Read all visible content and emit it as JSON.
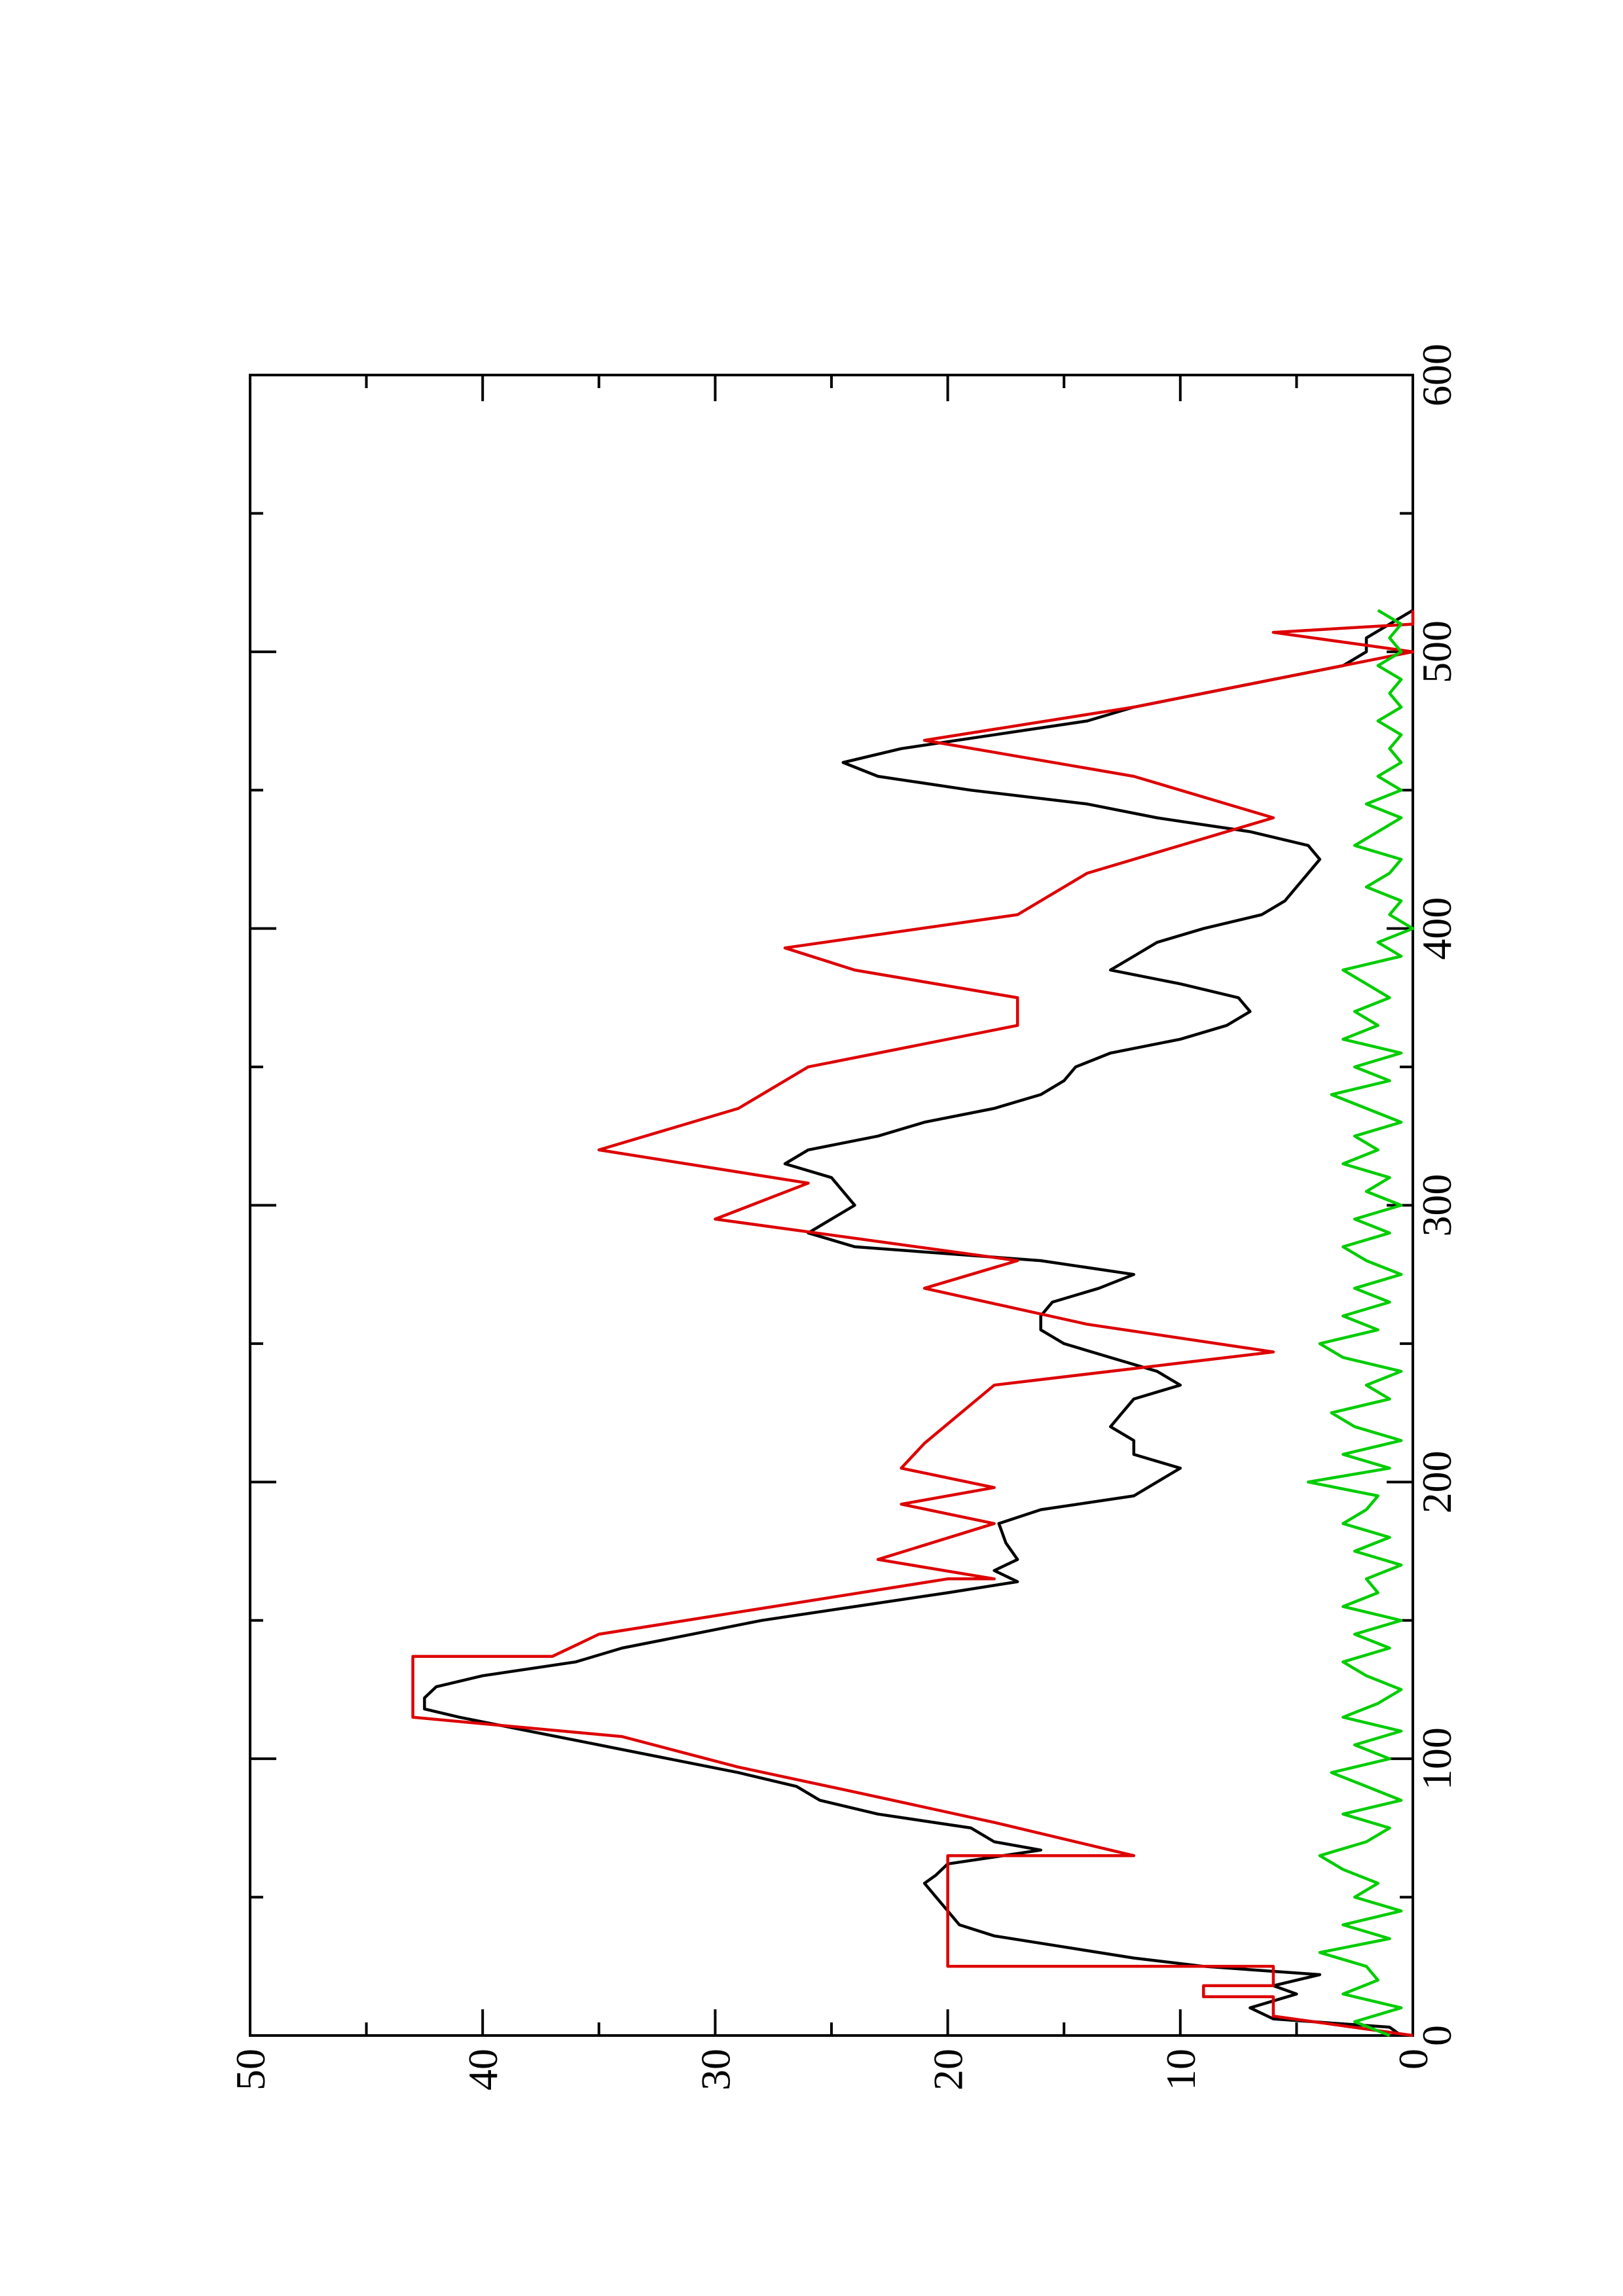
{
  "chart_data": {
    "type": "line",
    "title": "",
    "xlabel": "",
    "ylabel": "",
    "xlim": [
      0,
      600
    ],
    "ylim": [
      0,
      50
    ],
    "x_ticks": [
      0,
      100,
      200,
      300,
      400,
      500,
      600
    ],
    "y_ticks": [
      0,
      10,
      20,
      30,
      40,
      50
    ],
    "x_tick_labels": [
      "0",
      "100",
      "200",
      "300",
      "400",
      "500",
      "600"
    ],
    "y_tick_labels": [
      "0",
      "10",
      "20",
      "30",
      "40",
      "50"
    ],
    "grid": false,
    "legend": "none",
    "orientation": "rotated 90 degrees counter-clockwise",
    "series": [
      {
        "color": "#000000",
        "x": [
          0,
          3,
          6,
          10,
          15,
          18,
          22,
          25,
          28,
          32,
          36,
          40,
          45,
          50,
          55,
          58,
          62,
          67,
          70,
          75,
          80,
          85,
          90,
          95,
          100,
          105,
          110,
          115,
          118,
          122,
          126,
          130,
          135,
          140,
          145,
          150,
          155,
          160,
          164,
          168,
          172,
          178,
          185,
          190,
          195,
          200,
          205,
          210,
          215,
          220,
          225,
          230,
          235,
          240,
          245,
          250,
          255,
          260,
          265,
          270,
          275,
          280,
          285,
          290,
          295,
          300,
          305,
          310,
          315,
          320,
          325,
          330,
          335,
          340,
          345,
          350,
          355,
          360,
          365,
          370,
          375,
          380,
          385,
          390,
          395,
          400,
          405,
          410,
          415,
          420,
          425,
          430,
          435,
          440,
          445,
          450,
          455,
          460,
          465,
          470,
          475,
          480,
          485,
          490,
          495,
          500,
          505,
          510,
          515
        ],
        "y": [
          0.5,
          1,
          6,
          7,
          5,
          6,
          4,
          9,
          12,
          15,
          18,
          19.5,
          20,
          20.5,
          21,
          20.5,
          20,
          16,
          18,
          19,
          23,
          25.5,
          26.5,
          29,
          32,
          35,
          38,
          41,
          42.5,
          42.5,
          42,
          40,
          36,
          34,
          31,
          28,
          24,
          20,
          17,
          18,
          17,
          17.5,
          17.8,
          16,
          12,
          11,
          10,
          12,
          12,
          13,
          12.5,
          12,
          10,
          11,
          13,
          15,
          16,
          16,
          15.5,
          13.5,
          12,
          16,
          24,
          26,
          25,
          24,
          24.5,
          25,
          27,
          26,
          23,
          21,
          18,
          16,
          15,
          14.5,
          13,
          10,
          8,
          7,
          7.5,
          10,
          13,
          12,
          11,
          9,
          6.5,
          5.5,
          5,
          4.5,
          4,
          4.5,
          7,
          11,
          14,
          19,
          23,
          24.5,
          22,
          18,
          14,
          12,
          9,
          6,
          3,
          2,
          2,
          1,
          0
        ]
      },
      {
        "color": "#dd0000",
        "x": [
          0,
          7,
          7,
          14,
          14,
          18,
          18,
          25,
          25,
          45,
          45,
          65,
          65,
          77,
          77,
          88,
          88,
          97,
          97,
          108,
          108,
          115,
          115,
          137,
          137,
          145,
          145,
          165,
          165,
          172,
          172,
          185,
          185,
          192,
          192,
          198,
          198,
          205,
          205,
          214,
          214,
          235,
          235,
          247,
          247,
          257,
          257,
          270,
          270,
          280,
          280,
          295,
          295,
          308,
          308,
          320,
          320,
          335,
          335,
          350,
          350,
          365,
          365,
          375,
          375,
          385,
          385,
          393,
          393,
          405,
          405,
          420,
          420,
          440,
          440,
          455,
          455,
          468,
          468,
          480,
          480,
          500,
          500,
          507,
          507,
          510,
          510,
          515
        ],
        "y": [
          0,
          6,
          6,
          6,
          9,
          9,
          6,
          6,
          20,
          20,
          20,
          20,
          12,
          18,
          18,
          24,
          24,
          29,
          29,
          34,
          34,
          43,
          43,
          43,
          37,
          35,
          35,
          20,
          18,
          23,
          23,
          18,
          18,
          22,
          22,
          18,
          18,
          22,
          22,
          21,
          21,
          18,
          18,
          6,
          6,
          14,
          14,
          21,
          21,
          17,
          17,
          30,
          30,
          26,
          26,
          35,
          35,
          29,
          29,
          26,
          26,
          17,
          17,
          17,
          17,
          24,
          24,
          27,
          27,
          17,
          17,
          14,
          14,
          6,
          6,
          12,
          12,
          21,
          21,
          12,
          12,
          0,
          0,
          6,
          6,
          0,
          0,
          0
        ]
      },
      {
        "color": "#00cc00",
        "x": [
          0,
          5,
          10,
          15,
          20,
          25,
          30,
          35,
          40,
          45,
          50,
          55,
          60,
          65,
          70,
          75,
          80,
          85,
          90,
          95,
          100,
          105,
          110,
          115,
          120,
          125,
          130,
          135,
          140,
          145,
          150,
          155,
          160,
          165,
          170,
          175,
          180,
          185,
          190,
          195,
          200,
          205,
          210,
          215,
          220,
          225,
          230,
          235,
          240,
          245,
          250,
          255,
          260,
          265,
          270,
          275,
          280,
          285,
          290,
          295,
          300,
          305,
          310,
          315,
          320,
          325,
          330,
          335,
          340,
          345,
          350,
          355,
          360,
          365,
          370,
          375,
          380,
          385,
          390,
          395,
          400,
          405,
          410,
          415,
          420,
          425,
          430,
          435,
          440,
          445,
          450,
          455,
          460,
          465,
          470,
          475,
          480,
          485,
          490,
          495,
          500,
          505,
          510,
          515
        ],
        "y": [
          1,
          2.5,
          0.5,
          3,
          1.5,
          2,
          4,
          1,
          3,
          0.5,
          2.5,
          1.5,
          3,
          4,
          2,
          1,
          3,
          0.5,
          2,
          3.5,
          1,
          2.5,
          0.5,
          3,
          1.5,
          0.5,
          2,
          3,
          1,
          2.5,
          0.5,
          3,
          1.5,
          2,
          0.5,
          2.5,
          1,
          3,
          2,
          1.5,
          4.5,
          1,
          3,
          0.5,
          2.5,
          3.5,
          1,
          2,
          0.5,
          3,
          4,
          1.5,
          3,
          1,
          2.5,
          0.5,
          2,
          3,
          1,
          2.5,
          0.5,
          2,
          1,
          3,
          1.5,
          2.5,
          0.5,
          2,
          3.5,
          1,
          2.5,
          0.5,
          3,
          1.5,
          2.5,
          1,
          2,
          3,
          0.5,
          1.5,
          0,
          1,
          0.5,
          2,
          1,
          0.5,
          2.5,
          1.5,
          0.5,
          2,
          0.5,
          1.5,
          0.5,
          1,
          0.5,
          1.5,
          0.5,
          1,
          0.5,
          1.5,
          0.5,
          1,
          0.5,
          1.5
        ]
      }
    ]
  }
}
